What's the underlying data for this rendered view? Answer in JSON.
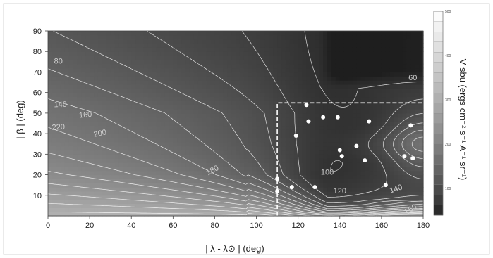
{
  "chart_data": {
    "type": "heatmap",
    "xlabel": "| λ - λ⊙ |   (deg)",
    "ylabel": "| β |   (deg)",
    "colorbar_label": "V sbu (ergs cm⁻² s⁻¹ A⁻¹ sr⁻¹)",
    "xlim": [
      0,
      180
    ],
    "ylim": [
      0,
      90
    ],
    "x_ticks": [
      "0",
      "20",
      "40",
      "60",
      "80",
      "100",
      "120",
      "140",
      "160",
      "180"
    ],
    "y_ticks": [
      "10",
      "20",
      "30",
      "40",
      "50",
      "60",
      "70",
      "80",
      "90"
    ],
    "colorbar_range": [
      40,
      500
    ],
    "colorbar_ticks": [
      "100",
      "200",
      "300",
      "400",
      "500"
    ],
    "contour_labels": [
      {
        "text": "80",
        "x": 5,
        "y": 75,
        "angle": 0
      },
      {
        "text": "60",
        "x": 175,
        "y": 67,
        "angle": 0
      },
      {
        "text": "140",
        "x": 6,
        "y": 54,
        "angle": -2
      },
      {
        "text": "160",
        "x": 18,
        "y": 49,
        "angle": -6
      },
      {
        "text": "220",
        "x": 5,
        "y": 43,
        "angle": -3
      },
      {
        "text": "200",
        "x": 25,
        "y": 40,
        "angle": -12
      },
      {
        "text": "180",
        "x": 79,
        "y": 22,
        "angle": -28
      },
      {
        "text": "100",
        "x": 134,
        "y": 21,
        "angle": 0
      },
      {
        "text": "120",
        "x": 140,
        "y": 12,
        "angle": 0
      },
      {
        "text": "140",
        "x": 167,
        "y": 13,
        "angle": -18
      },
      {
        "text": "160",
        "x": 174,
        "y": 3,
        "angle": -30
      }
    ],
    "contour_levels": [
      60,
      80,
      100,
      120,
      140,
      160,
      180,
      200,
      220,
      240,
      260,
      280,
      300
    ],
    "highlight_region": {
      "x": [
        110,
        180
      ],
      "y": [
        0,
        55
      ]
    },
    "points": [
      {
        "x": 124,
        "y": 54
      },
      {
        "x": 125,
        "y": 46
      },
      {
        "x": 119,
        "y": 39
      },
      {
        "x": 132,
        "y": 48
      },
      {
        "x": 139,
        "y": 48
      },
      {
        "x": 154,
        "y": 46
      },
      {
        "x": 174,
        "y": 44
      },
      {
        "x": 140,
        "y": 32
      },
      {
        "x": 148,
        "y": 34
      },
      {
        "x": 141,
        "y": 29
      },
      {
        "x": 152,
        "y": 27
      },
      {
        "x": 171,
        "y": 29
      },
      {
        "x": 175,
        "y": 28
      },
      {
        "x": 110,
        "y": 18
      },
      {
        "x": 110,
        "y": 12
      },
      {
        "x": 117,
        "y": 14
      },
      {
        "x": 128,
        "y": 14
      },
      {
        "x": 162,
        "y": 15
      }
    ],
    "grid": false,
    "legend": "right colorbar"
  }
}
